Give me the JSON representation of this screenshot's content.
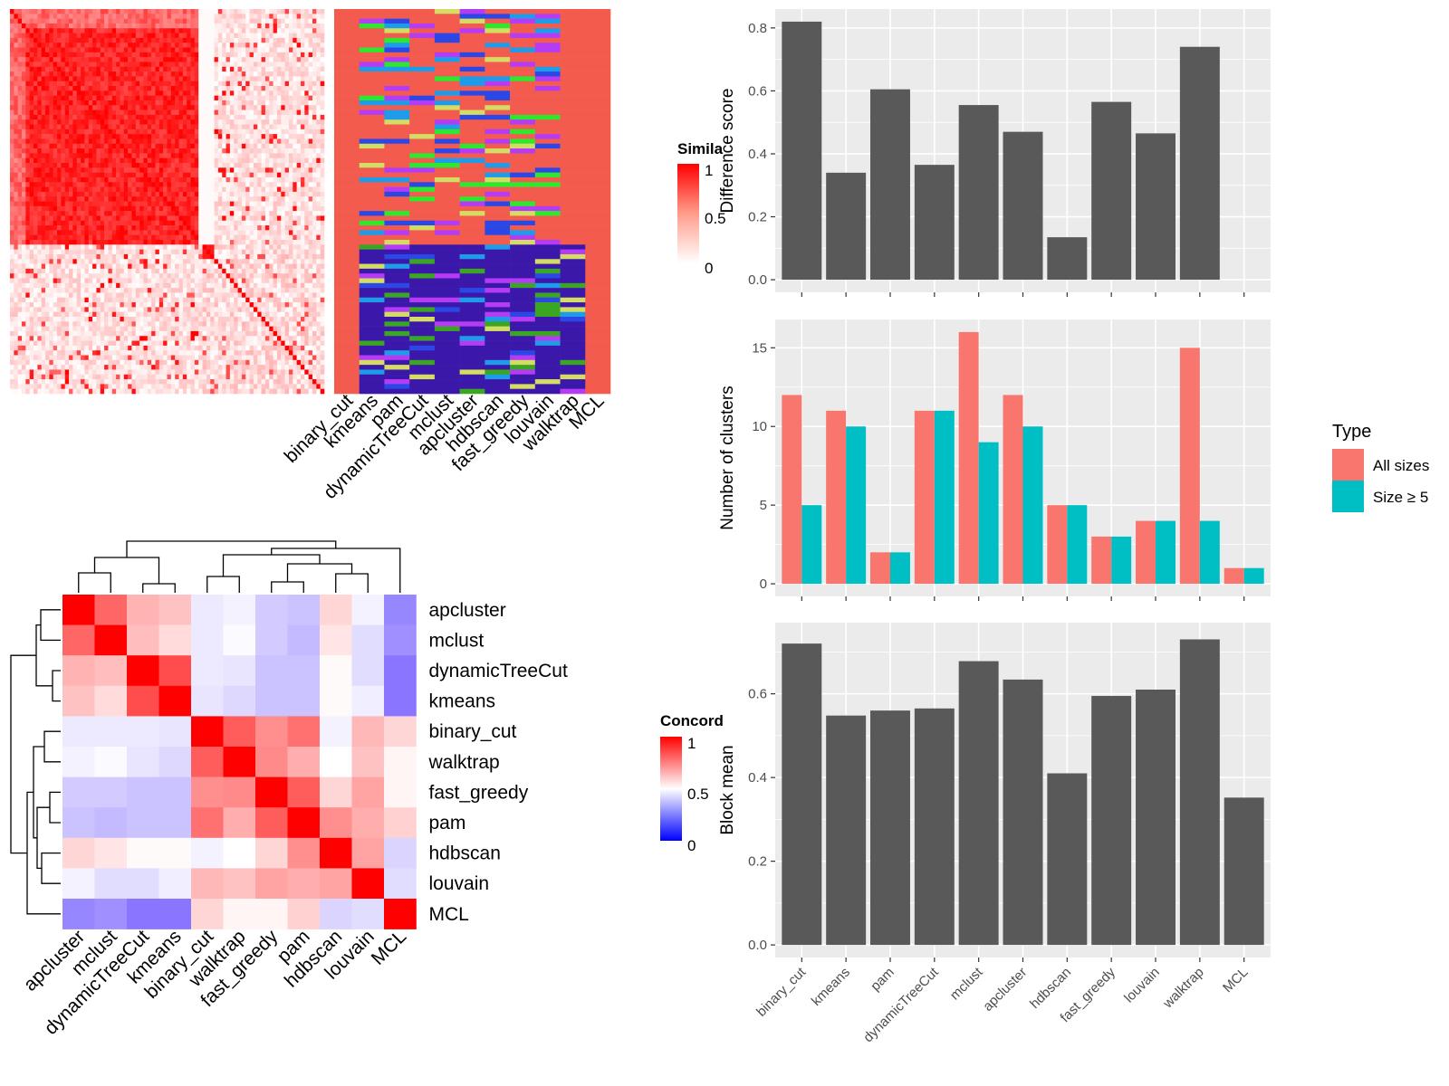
{
  "colors": {
    "similarity_high": "#ff0000",
    "similarity_low": "#ffffff",
    "concordance_high": "#ff0000",
    "concordance_mid": "#ffffff",
    "concordance_low": "#0000ff",
    "bar_fill": "#595959",
    "panel_bg": "#ebebeb",
    "all_sizes": "#f8766d",
    "size_ge5": "#00bfc4",
    "class_palette": [
      "#f25b4d",
      "#3b18aa",
      "#2ee82e",
      "#d4dc64",
      "#b63bf5",
      "#1f9ce9",
      "#2b47e6",
      "#3aa622"
    ]
  },
  "similarity_heatmap": {
    "legend_title": "Simila",
    "legend_ticks": [
      "1",
      "0.5",
      "0"
    ]
  },
  "class_heatmap": {
    "methods": [
      "binary_cut",
      "kmeans",
      "pam",
      "dynamicTreeCut",
      "mclust",
      "apcluster",
      "hdbscan",
      "fast_greedy",
      "louvain",
      "walktrap",
      "MCL"
    ]
  },
  "concordance_heatmap": {
    "legend_title": "Concord",
    "legend_ticks": [
      "1",
      "0.5",
      "0"
    ],
    "order": [
      "apcluster",
      "mclust",
      "dynamicTreeCut",
      "kmeans",
      "binary_cut",
      "walktrap",
      "fast_greedy",
      "pam",
      "hdbscan",
      "louvain",
      "MCL"
    ]
  },
  "chart_data": [
    {
      "type": "bar",
      "categories": [
        "binary_cut",
        "kmeans",
        "pam",
        "dynamicTreeCut",
        "mclust",
        "apcluster",
        "hdbscan",
        "fast_greedy",
        "louvain",
        "walktrap",
        "MCL"
      ],
      "values": [
        0.82,
        0.34,
        0.605,
        0.365,
        0.555,
        0.47,
        0.135,
        0.565,
        0.465,
        0.74,
        0.0
      ],
      "title": "",
      "xlabel": "",
      "ylabel": "Difference score",
      "ylim": [
        -0.04,
        0.86
      ],
      "yticks": [
        "0.0",
        "0.2",
        "0.4",
        "0.6",
        "0.8"
      ],
      "grid": true
    },
    {
      "type": "bar",
      "categories": [
        "binary_cut",
        "kmeans",
        "pam",
        "dynamicTreeCut",
        "mclust",
        "apcluster",
        "hdbscan",
        "fast_greedy",
        "louvain",
        "walktrap",
        "MCL"
      ],
      "series": [
        {
          "name": "All sizes",
          "values": [
            12,
            11,
            2,
            11,
            16,
            12,
            5,
            3,
            4,
            15,
            1
          ]
        },
        {
          "name": "Size ≥ 5",
          "values": [
            5,
            10,
            2,
            11,
            9,
            10,
            5,
            3,
            4,
            4,
            1
          ]
        }
      ],
      "title": "",
      "xlabel": "",
      "ylabel": "Number of clusters",
      "ylim": [
        -0.8,
        16.8
      ],
      "yticks": [
        "0",
        "5",
        "10",
        "15"
      ],
      "legend_title": "Type",
      "legend_position": "right",
      "grid": true
    },
    {
      "type": "bar",
      "categories": [
        "binary_cut",
        "kmeans",
        "pam",
        "dynamicTreeCut",
        "mclust",
        "apcluster",
        "hdbscan",
        "fast_greedy",
        "louvain",
        "walktrap",
        "MCL"
      ],
      "values": [
        0.72,
        0.548,
        0.56,
        0.565,
        0.678,
        0.634,
        0.41,
        0.595,
        0.61,
        0.73,
        0.352
      ],
      "title": "",
      "xlabel": "",
      "ylabel": "Block mean",
      "ylim": [
        -0.03,
        0.77
      ],
      "yticks": [
        "0.0",
        "0.2",
        "0.4",
        "0.6"
      ],
      "grid": true
    }
  ]
}
